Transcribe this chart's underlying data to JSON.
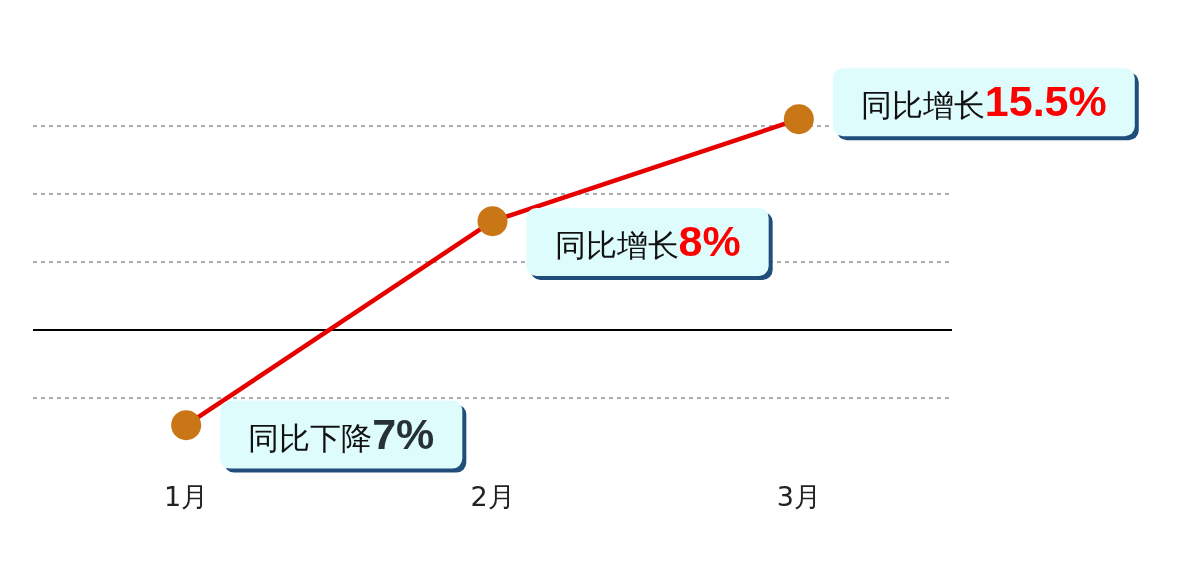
{
  "chart_data": {
    "type": "line",
    "categories": [
      "1月",
      "2月",
      "3月"
    ],
    "series": [
      {
        "color": "#e60000",
        "colors": [
          "#c97716",
          "#c97716",
          "#c97716"
        ],
        "values": [
          -7,
          8,
          15.5
        ],
        "value_labels": [
          "同比下降7%",
          "同比增长8%",
          "同比增长15.5%"
        ]
      }
    ],
    "grid": "y",
    "marker": "circle",
    "line_style": "solid",
    "tick_labels": "x"
  }
}
